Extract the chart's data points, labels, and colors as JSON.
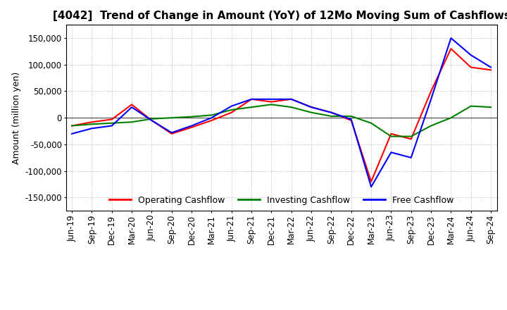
{
  "title": "[4042]  Trend of Change in Amount (YoY) of 12Mo Moving Sum of Cashflows",
  "ylabel": "Amount (million yen)",
  "title_fontsize": 11,
  "label_fontsize": 9,
  "tick_fontsize": 8.5,
  "legend_labels": [
    "Operating Cashflow",
    "Investing Cashflow",
    "Free Cashflow"
  ],
  "legend_colors": [
    "#ff0000",
    "#008000",
    "#0000ff"
  ],
  "ylim": [
    -175000,
    175000
  ],
  "yticks": [
    -150000,
    -100000,
    -50000,
    0,
    50000,
    100000,
    150000
  ],
  "x_labels": [
    "Jun-19",
    "Sep-19",
    "Dec-19",
    "Mar-20",
    "Jun-20",
    "Sep-20",
    "Dec-20",
    "Mar-21",
    "Jun-21",
    "Sep-21",
    "Dec-21",
    "Mar-22",
    "Jun-22",
    "Sep-22",
    "Dec-22",
    "Mar-23",
    "Jun-23",
    "Sep-23",
    "Dec-23",
    "Mar-24",
    "Jun-24",
    "Sep-24"
  ],
  "operating": [
    -15000,
    -8000,
    -3000,
    25000,
    -5000,
    -30000,
    -18000,
    -5000,
    10000,
    35000,
    30000,
    35000,
    20000,
    10000,
    -5000,
    -120000,
    -30000,
    -40000,
    50000,
    130000,
    95000,
    90000
  ],
  "investing": [
    -15000,
    -12000,
    -10000,
    -8000,
    -2000,
    0,
    2000,
    5000,
    15000,
    20000,
    25000,
    20000,
    10000,
    3000,
    3000,
    -10000,
    -35000,
    -35000,
    -15000,
    0,
    22000,
    20000
  ],
  "free": [
    -30000,
    -20000,
    -15000,
    20000,
    -5000,
    -28000,
    -15000,
    0,
    22000,
    35000,
    35000,
    35000,
    20000,
    10000,
    -3000,
    -130000,
    -65000,
    -75000,
    35000,
    150000,
    118000,
    95000
  ]
}
